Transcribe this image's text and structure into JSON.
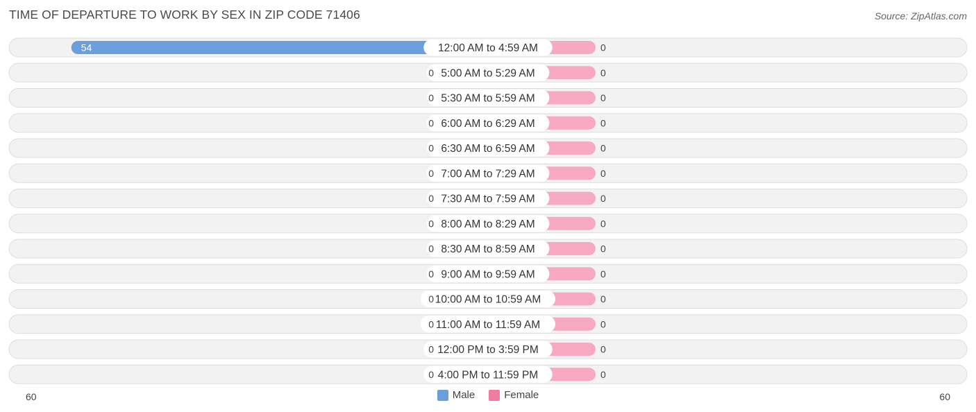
{
  "title": "TIME OF DEPARTURE TO WORK BY SEX IN ZIP CODE 71406",
  "source": "Source: ZipAtlas.com",
  "colors": {
    "male": "#6a9fdc",
    "male_light": "#a9c8ec",
    "female": "#f07aa0",
    "female_light": "#f6a9c1",
    "row_bg": "#efefef",
    "row_border": "#dddddd"
  },
  "chart_data": {
    "type": "bar",
    "orientation": "horizontal-diverging",
    "categories": [
      "12:00 AM to 4:59 AM",
      "5:00 AM to 5:29 AM",
      "5:30 AM to 5:59 AM",
      "6:00 AM to 6:29 AM",
      "6:30 AM to 6:59 AM",
      "7:00 AM to 7:29 AM",
      "7:30 AM to 7:59 AM",
      "8:00 AM to 8:29 AM",
      "8:30 AM to 8:59 AM",
      "9:00 AM to 9:59 AM",
      "10:00 AM to 10:59 AM",
      "11:00 AM to 11:59 AM",
      "12:00 PM to 3:59 PM",
      "4:00 PM to 11:59 PM"
    ],
    "series": [
      {
        "name": "Male",
        "values": [
          54,
          0,
          0,
          0,
          0,
          0,
          0,
          0,
          0,
          0,
          0,
          0,
          0,
          0
        ]
      },
      {
        "name": "Female",
        "values": [
          0,
          0,
          0,
          0,
          0,
          0,
          0,
          0,
          0,
          0,
          0,
          0,
          0,
          0
        ]
      }
    ],
    "axis_min_label": "60",
    "axis_max_label": "60",
    "xlim": [
      -60,
      60
    ],
    "legend_position": "bottom-center",
    "grid": false
  }
}
